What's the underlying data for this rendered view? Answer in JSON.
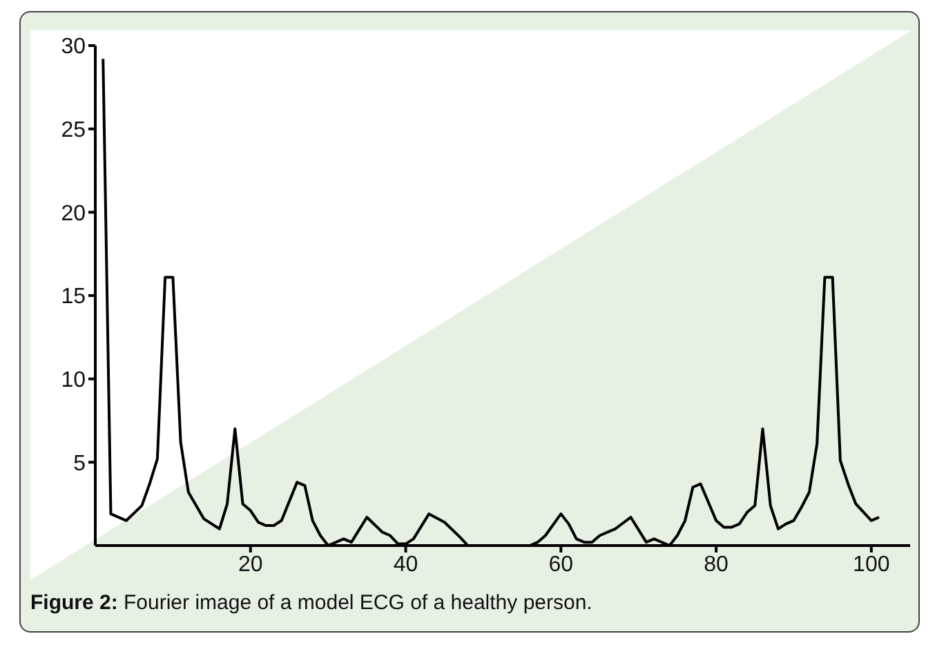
{
  "chart_data": {
    "type": "line",
    "annotations": [
      "Figure 2: Fourier image of a model ECG of a healthy person."
    ],
    "x": [
      1,
      2,
      4,
      6,
      7,
      8,
      9,
      10,
      11,
      12,
      14,
      15,
      16,
      17,
      18,
      19,
      20,
      21,
      22,
      23,
      24,
      26,
      27,
      28,
      29,
      30,
      32,
      33,
      35,
      37,
      38,
      39,
      40,
      41,
      43,
      45,
      47,
      48,
      50,
      52,
      54,
      56,
      57,
      58,
      60,
      61,
      62,
      63,
      64,
      65,
      66,
      67,
      69,
      71,
      72,
      74,
      75,
      76,
      77,
      78,
      80,
      81,
      82,
      83,
      84,
      85,
      86,
      87,
      88,
      89,
      90,
      91,
      92,
      93,
      94,
      95,
      96,
      97,
      98,
      100,
      101
    ],
    "series": [
      {
        "color": "#000000",
        "values": [
          29.2,
          1.9,
          1.5,
          2.4,
          3.7,
          5.2,
          16.1,
          16.1,
          6.2,
          3.2,
          1.6,
          1.3,
          1.0,
          2.5,
          7.0,
          2.5,
          2.1,
          1.4,
          1.2,
          1.2,
          1.5,
          3.8,
          3.6,
          1.5,
          0.6,
          0,
          0.4,
          0.2,
          1.7,
          0.8,
          0.6,
          0.1,
          0.1,
          0.4,
          1.9,
          1.4,
          0.5,
          0,
          0,
          0,
          0,
          0,
          0.2,
          0.6,
          1.9,
          1.3,
          0.4,
          0.2,
          0.2,
          0.6,
          0.8,
          1.0,
          1.7,
          0.2,
          0.4,
          0.0,
          0.6,
          1.5,
          3.5,
          3.7,
          1.5,
          1.1,
          1.1,
          1.3,
          2.0,
          2.4,
          7.0,
          2.4,
          1.0,
          1.3,
          1.5,
          2.3,
          3.2,
          6.1,
          16.1,
          16.1,
          5.1,
          3.7,
          2.5,
          1.5,
          1.7
        ]
      }
    ],
    "xlim": [
      0,
      105
    ],
    "xticks": [
      20,
      40,
      60,
      80,
      100
    ],
    "ylim": [
      0,
      30
    ],
    "yticks": [
      5,
      10,
      15,
      20,
      25,
      30
    ],
    "grid": false,
    "legend": false,
    "marker": "none",
    "line_style": "solid"
  }
}
